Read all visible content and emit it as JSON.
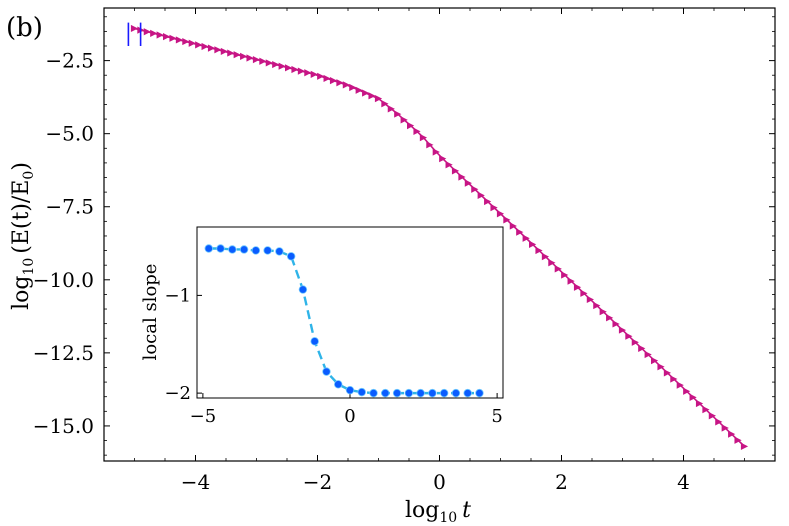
{
  "panel_label": "(b)",
  "colors": {
    "main": "#c71585",
    "blue_marks": "#1a1aff",
    "inset_line": "#2fb4e8",
    "inset_marker": "#0a5cff"
  },
  "chart_data": [
    {
      "type": "line",
      "id": "main",
      "xlabel_base": "log",
      "xlabel_sub": "10",
      "xlabel_var": "t",
      "ylabel": "log10 (E(t)/E0)",
      "ylabel_base": "log",
      "ylabel_sub": "10",
      "ylabel_arg": "(E(t)/E",
      "ylabel_arg_sub": "0",
      "ylabel_close": ")",
      "xlim": [
        -5.5,
        5.5
      ],
      "ylim": [
        -16.2,
        -0.7
      ],
      "xticks": [
        -4,
        -2,
        0,
        2,
        4
      ],
      "xtick_labels": [
        "−4",
        "−2",
        "0",
        "2",
        "4"
      ],
      "yticks": [
        -2.5,
        -5.0,
        -7.5,
        -10.0,
        -12.5,
        -15.0
      ],
      "ytick_labels": [
        "−2.5",
        "−5.0",
        "−7.5",
        "−10.0",
        "−12.5",
        "−15.0"
      ],
      "marker": "triangle-right",
      "curve": {
        "x_range": [
          -5.0,
          5.0
        ],
        "n_points": 96,
        "knots": [
          [
            -5.0,
            -1.4
          ],
          [
            -2.0,
            -3.0
          ],
          [
            -1.5,
            -3.35
          ],
          [
            -1.0,
            -3.8
          ],
          [
            -0.7,
            -4.3
          ],
          [
            -0.3,
            -5.05
          ],
          [
            0.0,
            -5.75
          ],
          [
            5.0,
            -15.7
          ]
        ]
      },
      "vertical_marks": [
        {
          "x": -5.1,
          "y_from": -1.2,
          "y_to": -2.0
        },
        {
          "x": -4.9,
          "y_from": -1.2,
          "y_to": -2.0
        }
      ]
    },
    {
      "type": "line",
      "id": "inset",
      "ylabel": "local slope",
      "xlim": [
        -5.2,
        5.2
      ],
      "ylim": [
        -2.05,
        -0.3
      ],
      "xticks": [
        -5,
        0,
        5
      ],
      "xtick_labels": [
        "−5",
        "0",
        "5"
      ],
      "yticks": [
        -1,
        -2
      ],
      "ytick_labels": [
        "−1",
        "−2"
      ],
      "x": [
        -4.8,
        -4.4,
        -4.0,
        -3.6,
        -3.2,
        -2.8,
        -2.4,
        -2.0,
        -1.6,
        -1.2,
        -0.8,
        -0.4,
        0.0,
        0.4,
        0.8,
        1.2,
        1.6,
        2.0,
        2.4,
        2.8,
        3.2,
        3.6,
        4.0,
        4.4
      ],
      "y": [
        -0.52,
        -0.52,
        -0.53,
        -0.53,
        -0.54,
        -0.54,
        -0.55,
        -0.6,
        -0.94,
        -1.47,
        -1.78,
        -1.91,
        -1.97,
        -1.99,
        -2.0,
        -2.0,
        -2.0,
        -2.0,
        -2.0,
        -2.0,
        -2.0,
        -2.0,
        -2.0,
        -2.0
      ]
    }
  ]
}
